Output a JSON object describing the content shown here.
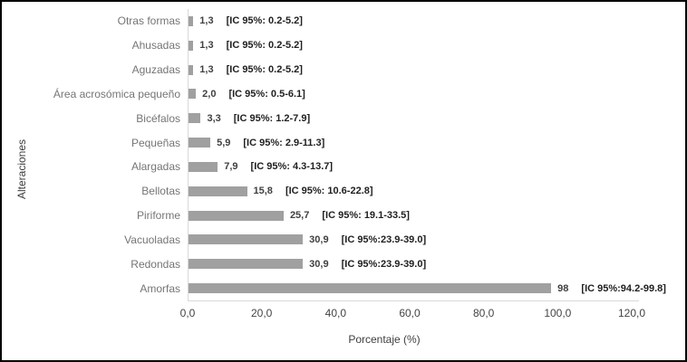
{
  "chart_data": {
    "type": "bar",
    "orientation": "horizontal",
    "title": "",
    "xlabel": "Porcentaje (%)",
    "ylabel": "Alteraciones",
    "xlim": [
      0,
      120
    ],
    "x_ticks": [
      "0,0",
      "20,0",
      "40,0",
      "60,0",
      "80,0",
      "100,0",
      "120,0"
    ],
    "grid": false,
    "legend": false,
    "categories": [
      "Otras formas",
      "Ahusadas",
      "Aguzadas",
      "Área acrosómica pequeño",
      "Bicéfalos",
      "Pequeñas",
      "Alargadas",
      "Bellotas",
      "Piriforme",
      "Vacuoladas",
      "Redondas",
      "Amorfas"
    ],
    "values": [
      1.3,
      1.3,
      1.3,
      2.0,
      3.3,
      5.9,
      7.9,
      15.8,
      25.7,
      30.9,
      30.9,
      98
    ],
    "value_labels": [
      "1,3",
      "1,3",
      "1,3",
      "2,0",
      "3,3",
      "5,9",
      "7,9",
      "15,8",
      "25,7",
      "30,9",
      "30,9",
      "98"
    ],
    "ci_labels": [
      "[IC 95%: 0.2-5.2]",
      "[IC 95%: 0.2-5.2]",
      "[IC 95%: 0.2-5.2]",
      "[IC 95%: 0.5-6.1]",
      "[IC 95%: 1.2-7.9]",
      "[IC 95%: 2.9-11.3]",
      "[IC 95%: 4.3-13.7]",
      "[IC 95%: 10.6-22.8]",
      "[IC 95%: 19.1-33.5]",
      "[IC 95%:23.9-39.0]",
      "[IC 95%:23.9-39.0]",
      "[IC 95%:94.2-99.8]"
    ]
  },
  "colors": {
    "bar": "#a0a0a0",
    "axis": "#d9d9d9",
    "category_text": "#757575",
    "tick_text": "#444444",
    "value_text": "#3f3f3f",
    "ci_text": "#1f1f1f",
    "axis_title_text": "#3d3d3d",
    "frame_border": "#000000",
    "background": "#ffffff"
  }
}
